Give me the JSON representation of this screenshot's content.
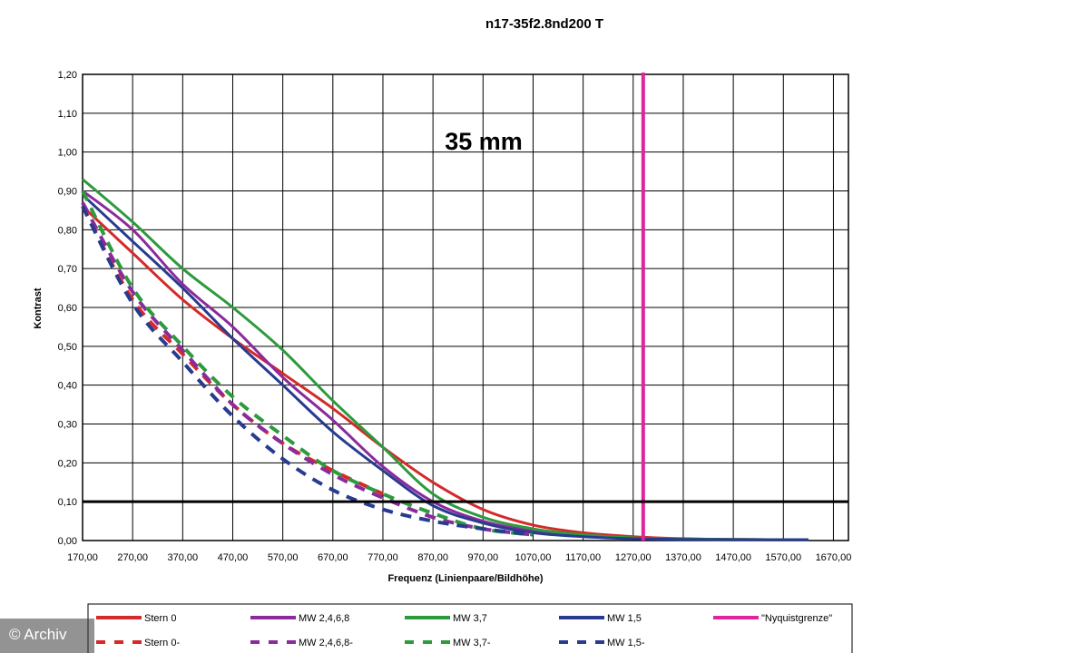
{
  "chart_data": {
    "type": "line",
    "title": "n17-35f2.8nd200 T",
    "annotation": "35 mm",
    "xlabel": "Frequenz (Linienpaare/Bildhöhe)",
    "ylabel": "Kontrast",
    "xlim": [
      170,
      1700
    ],
    "ylim": [
      0,
      1.2
    ],
    "x_ticks": [
      "170,00",
      "270,00",
      "370,00",
      "470,00",
      "570,00",
      "670,00",
      "770,00",
      "870,00",
      "970,00",
      "1070,00",
      "1170,00",
      "1270,00",
      "1370,00",
      "1470,00",
      "1570,00",
      "1670,00"
    ],
    "y_ticks": [
      "0,00",
      "0,10",
      "0,20",
      "0,30",
      "0,40",
      "0,50",
      "0,60",
      "0,70",
      "0,80",
      "0,90",
      "1,00",
      "1,10",
      "1,20"
    ],
    "grid": true,
    "legend_position": "bottom",
    "reference_lines": [
      {
        "name": "\"Nyquistgrenze\"",
        "orientation": "vertical",
        "value": 1290,
        "color": "#e0249a"
      },
      {
        "orientation": "horizontal",
        "value": 0.1,
        "color": "#000000"
      }
    ],
    "series": [
      {
        "name": "Stern 0",
        "color": "#d42a2a",
        "dash": false,
        "points": [
          [
            170,
            0.86
          ],
          [
            270,
            0.74
          ],
          [
            370,
            0.62
          ],
          [
            470,
            0.52
          ],
          [
            570,
            0.43
          ],
          [
            670,
            0.34
          ],
          [
            770,
            0.24
          ],
          [
            870,
            0.15
          ],
          [
            970,
            0.08
          ],
          [
            1070,
            0.04
          ],
          [
            1170,
            0.02
          ],
          [
            1270,
            0.01
          ],
          [
            1370,
            0.005
          ],
          [
            1470,
            0.003
          ],
          [
            1570,
            0.002
          ],
          [
            1620,
            0.002
          ]
        ]
      },
      {
        "name": "MW 2,4,6,8",
        "color": "#8b2a9c",
        "dash": false,
        "points": [
          [
            170,
            0.9
          ],
          [
            270,
            0.8
          ],
          [
            370,
            0.66
          ],
          [
            470,
            0.55
          ],
          [
            570,
            0.42
          ],
          [
            670,
            0.31
          ],
          [
            770,
            0.19
          ],
          [
            870,
            0.1
          ],
          [
            970,
            0.05
          ],
          [
            1070,
            0.025
          ],
          [
            1170,
            0.012
          ],
          [
            1270,
            0.006
          ],
          [
            1370,
            0.004
          ],
          [
            1470,
            0.003
          ],
          [
            1570,
            0.002
          ],
          [
            1620,
            0.002
          ]
        ]
      },
      {
        "name": "MW 3,7",
        "color": "#2e9a3e",
        "dash": false,
        "points": [
          [
            170,
            0.93
          ],
          [
            270,
            0.82
          ],
          [
            370,
            0.7
          ],
          [
            470,
            0.6
          ],
          [
            570,
            0.49
          ],
          [
            670,
            0.36
          ],
          [
            770,
            0.24
          ],
          [
            870,
            0.12
          ],
          [
            970,
            0.06
          ],
          [
            1070,
            0.03
          ],
          [
            1170,
            0.015
          ],
          [
            1270,
            0.007
          ],
          [
            1370,
            0.004
          ],
          [
            1470,
            0.003
          ],
          [
            1570,
            0.002
          ],
          [
            1620,
            0.002
          ]
        ]
      },
      {
        "name": "MW 1,5",
        "color": "#283b8f",
        "dash": false,
        "points": [
          [
            170,
            0.89
          ],
          [
            270,
            0.77
          ],
          [
            370,
            0.65
          ],
          [
            470,
            0.52
          ],
          [
            570,
            0.4
          ],
          [
            670,
            0.28
          ],
          [
            770,
            0.18
          ],
          [
            870,
            0.09
          ],
          [
            970,
            0.045
          ],
          [
            1070,
            0.02
          ],
          [
            1170,
            0.01
          ],
          [
            1270,
            0.005
          ],
          [
            1370,
            0.003
          ],
          [
            1470,
            0.002
          ],
          [
            1570,
            0.002
          ],
          [
            1620,
            0.002
          ]
        ]
      },
      {
        "name": "Stern 0-",
        "color": "#d42a2a",
        "dash": true,
        "points": [
          [
            170,
            0.86
          ],
          [
            270,
            0.62
          ],
          [
            370,
            0.48
          ],
          [
            470,
            0.35
          ],
          [
            570,
            0.25
          ],
          [
            670,
            0.18
          ],
          [
            770,
            0.12
          ]
        ]
      },
      {
        "name": "MW 2,4,6,8-",
        "color": "#8b2a9c",
        "dash": true,
        "points": [
          [
            170,
            0.87
          ],
          [
            270,
            0.64
          ],
          [
            370,
            0.49
          ],
          [
            470,
            0.35
          ],
          [
            570,
            0.25
          ],
          [
            670,
            0.17
          ],
          [
            770,
            0.11
          ],
          [
            870,
            0.06
          ],
          [
            970,
            0.03
          ],
          [
            1070,
            0.015
          ]
        ]
      },
      {
        "name": "MW 3,7-",
        "color": "#2e9a3e",
        "dash": true,
        "points": [
          [
            170,
            0.9
          ],
          [
            270,
            0.65
          ],
          [
            370,
            0.5
          ],
          [
            470,
            0.37
          ],
          [
            570,
            0.27
          ],
          [
            670,
            0.18
          ],
          [
            770,
            0.12
          ],
          [
            870,
            0.07
          ],
          [
            970,
            0.03
          ],
          [
            1070,
            0.015
          ]
        ]
      },
      {
        "name": "MW 1,5-",
        "color": "#283b8f",
        "dash": true,
        "points": [
          [
            170,
            0.86
          ],
          [
            270,
            0.61
          ],
          [
            370,
            0.46
          ],
          [
            470,
            0.32
          ],
          [
            570,
            0.21
          ],
          [
            670,
            0.13
          ],
          [
            770,
            0.08
          ],
          [
            870,
            0.05
          ],
          [
            970,
            0.03
          ],
          [
            1070,
            0.015
          ]
        ]
      }
    ],
    "legend": [
      {
        "label": "Stern 0",
        "color": "#d42a2a",
        "dash": false
      },
      {
        "label": "MW 2,4,6,8",
        "color": "#8b2a9c",
        "dash": false
      },
      {
        "label": "MW 3,7",
        "color": "#2e9a3e",
        "dash": false
      },
      {
        "label": "MW 1,5",
        "color": "#283b8f",
        "dash": false
      },
      {
        "label": "\"Nyquistgrenze\"",
        "color": "#e0249a",
        "dash": false
      },
      {
        "label": "Stern 0-",
        "color": "#d42a2a",
        "dash": true
      },
      {
        "label": "MW 2,4,6,8-",
        "color": "#8b2a9c",
        "dash": true
      },
      {
        "label": "MW 3,7-",
        "color": "#2e9a3e",
        "dash": true
      },
      {
        "label": "MW 1,5-",
        "color": "#283b8f",
        "dash": true
      }
    ]
  },
  "watermark": "© Archiv"
}
